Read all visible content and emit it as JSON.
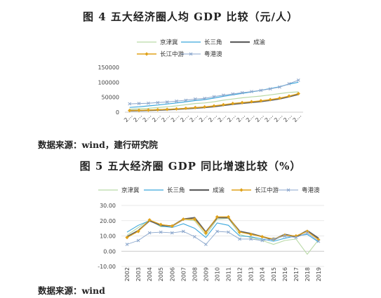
{
  "charts": [
    {
      "title": "图 4 五大经济圈人均 GDP 比较（元/人）",
      "source": "数据来源：wind，建行研究院"
    },
    {
      "title": "图 5 五大经济圈 GDP 同比增速比较（%）",
      "source": "数据来源：wind"
    }
  ],
  "colors": {
    "jjj": "#b9d9a6",
    "csj": "#3aa7dc",
    "cy": "#606060",
    "cjzy": "#e0a21a",
    "ygadq": "#8aa6cc"
  },
  "chart_data": [
    {
      "type": "line",
      "title": "图 4 五大经济圈人均 GDP 比较（元/人）",
      "xlabel": "",
      "ylabel": "",
      "ylim": [
        0,
        150000
      ],
      "yticks": [
        "150000",
        "100000",
        "50000",
        "0"
      ],
      "x": [
        "2001",
        "2002",
        "2003",
        "2004",
        "2005",
        "2006",
        "2007",
        "2008",
        "2009",
        "2010",
        "2011",
        "2012",
        "2013",
        "2014",
        "2015",
        "2016",
        "2017",
        "2018",
        "2019"
      ],
      "xtick_labels": [
        "2…",
        "2…",
        "2…",
        "2…",
        "2…",
        "2…",
        "2…",
        "2…",
        "2…",
        "2…",
        "2…",
        "2…",
        "2…",
        "2…",
        "2…",
        "2…",
        "2…",
        "2…",
        "2…"
      ],
      "legend_position": "top",
      "series": [
        {
          "name": "京津冀",
          "values": [
            10000,
            11500,
            13000,
            15500,
            18000,
            21000,
            25000,
            29000,
            31000,
            35000,
            40000,
            44000,
            48000,
            51000,
            54000,
            58000,
            62000,
            66000,
            68000
          ]
        },
        {
          "name": "长三角",
          "values": [
            16000,
            18000,
            21000,
            24000,
            27500,
            31000,
            35000,
            39000,
            42000,
            47000,
            53000,
            58000,
            63000,
            68000,
            73000,
            79000,
            85000,
            94000,
            100000
          ]
        },
        {
          "name": "成渝",
          "values": [
            5000,
            5500,
            6300,
            7200,
            8500,
            10000,
            12000,
            14000,
            16000,
            19000,
            23000,
            27000,
            30000,
            33000,
            36000,
            40000,
            45000,
            52000,
            60000
          ]
        },
        {
          "name": "长江中游",
          "values": [
            5500,
            6100,
            7000,
            8200,
            9500,
            11000,
            13000,
            15500,
            17500,
            21000,
            25000,
            29000,
            32000,
            35000,
            38000,
            42000,
            47000,
            54000,
            62000
          ]
        },
        {
          "name": "粤港澳",
          "values": [
            28000,
            29000,
            30000,
            32000,
            34000,
            37000,
            40000,
            44000,
            46000,
            52000,
            57000,
            61000,
            65000,
            69000,
            73000,
            78000,
            84000,
            95000,
            107000
          ]
        }
      ]
    },
    {
      "type": "line",
      "title": "图 5 五大经济圈 GDP 同比增速比较（%）",
      "xlabel": "",
      "ylabel": "",
      "ylim": [
        -10,
        30
      ],
      "yticks": [
        "30.00",
        "20.00",
        "10.00",
        "0.00",
        "-10.00"
      ],
      "x": [
        "2002",
        "2003",
        "2004",
        "2005",
        "2006",
        "2007",
        "2008",
        "2009",
        "2010",
        "2011",
        "2012",
        "2013",
        "2014",
        "2015",
        "2016",
        "2017",
        "2018",
        "2019"
      ],
      "legend_position": "top",
      "series": [
        {
          "name": "京津冀",
          "values": [
            10.5,
            15.5,
            20.5,
            16.0,
            16.5,
            21.0,
            20.0,
            10.5,
            21.0,
            21.5,
            11.0,
            9.0,
            7.0,
            4.5,
            7.0,
            8.0,
            -2.0,
            7.5
          ]
        },
        {
          "name": "长三角",
          "values": [
            12.5,
            17.0,
            20.0,
            16.5,
            15.5,
            18.0,
            15.0,
            9.0,
            18.5,
            17.0,
            10.0,
            9.5,
            8.0,
            6.5,
            8.5,
            10.0,
            11.0,
            6.0
          ]
        },
        {
          "name": "成渝",
          "values": [
            9.5,
            13.5,
            20.0,
            17.0,
            16.5,
            21.0,
            22.0,
            12.5,
            22.0,
            22.0,
            13.0,
            11.5,
            9.5,
            7.5,
            11.0,
            9.5,
            13.5,
            8.5
          ]
        },
        {
          "name": "长江中游",
          "values": [
            9.0,
            13.0,
            20.5,
            17.5,
            16.5,
            21.0,
            21.0,
            12.0,
            22.5,
            22.5,
            12.5,
            11.0,
            9.5,
            8.0,
            10.5,
            10.0,
            13.0,
            7.5
          ]
        },
        {
          "name": "粤港澳",
          "values": [
            4.5,
            7.0,
            12.0,
            12.5,
            12.0,
            13.0,
            9.5,
            4.5,
            13.0,
            12.5,
            8.0,
            8.0,
            7.0,
            8.0,
            10.0,
            9.0,
            12.0,
            6.5
          ]
        }
      ]
    }
  ]
}
